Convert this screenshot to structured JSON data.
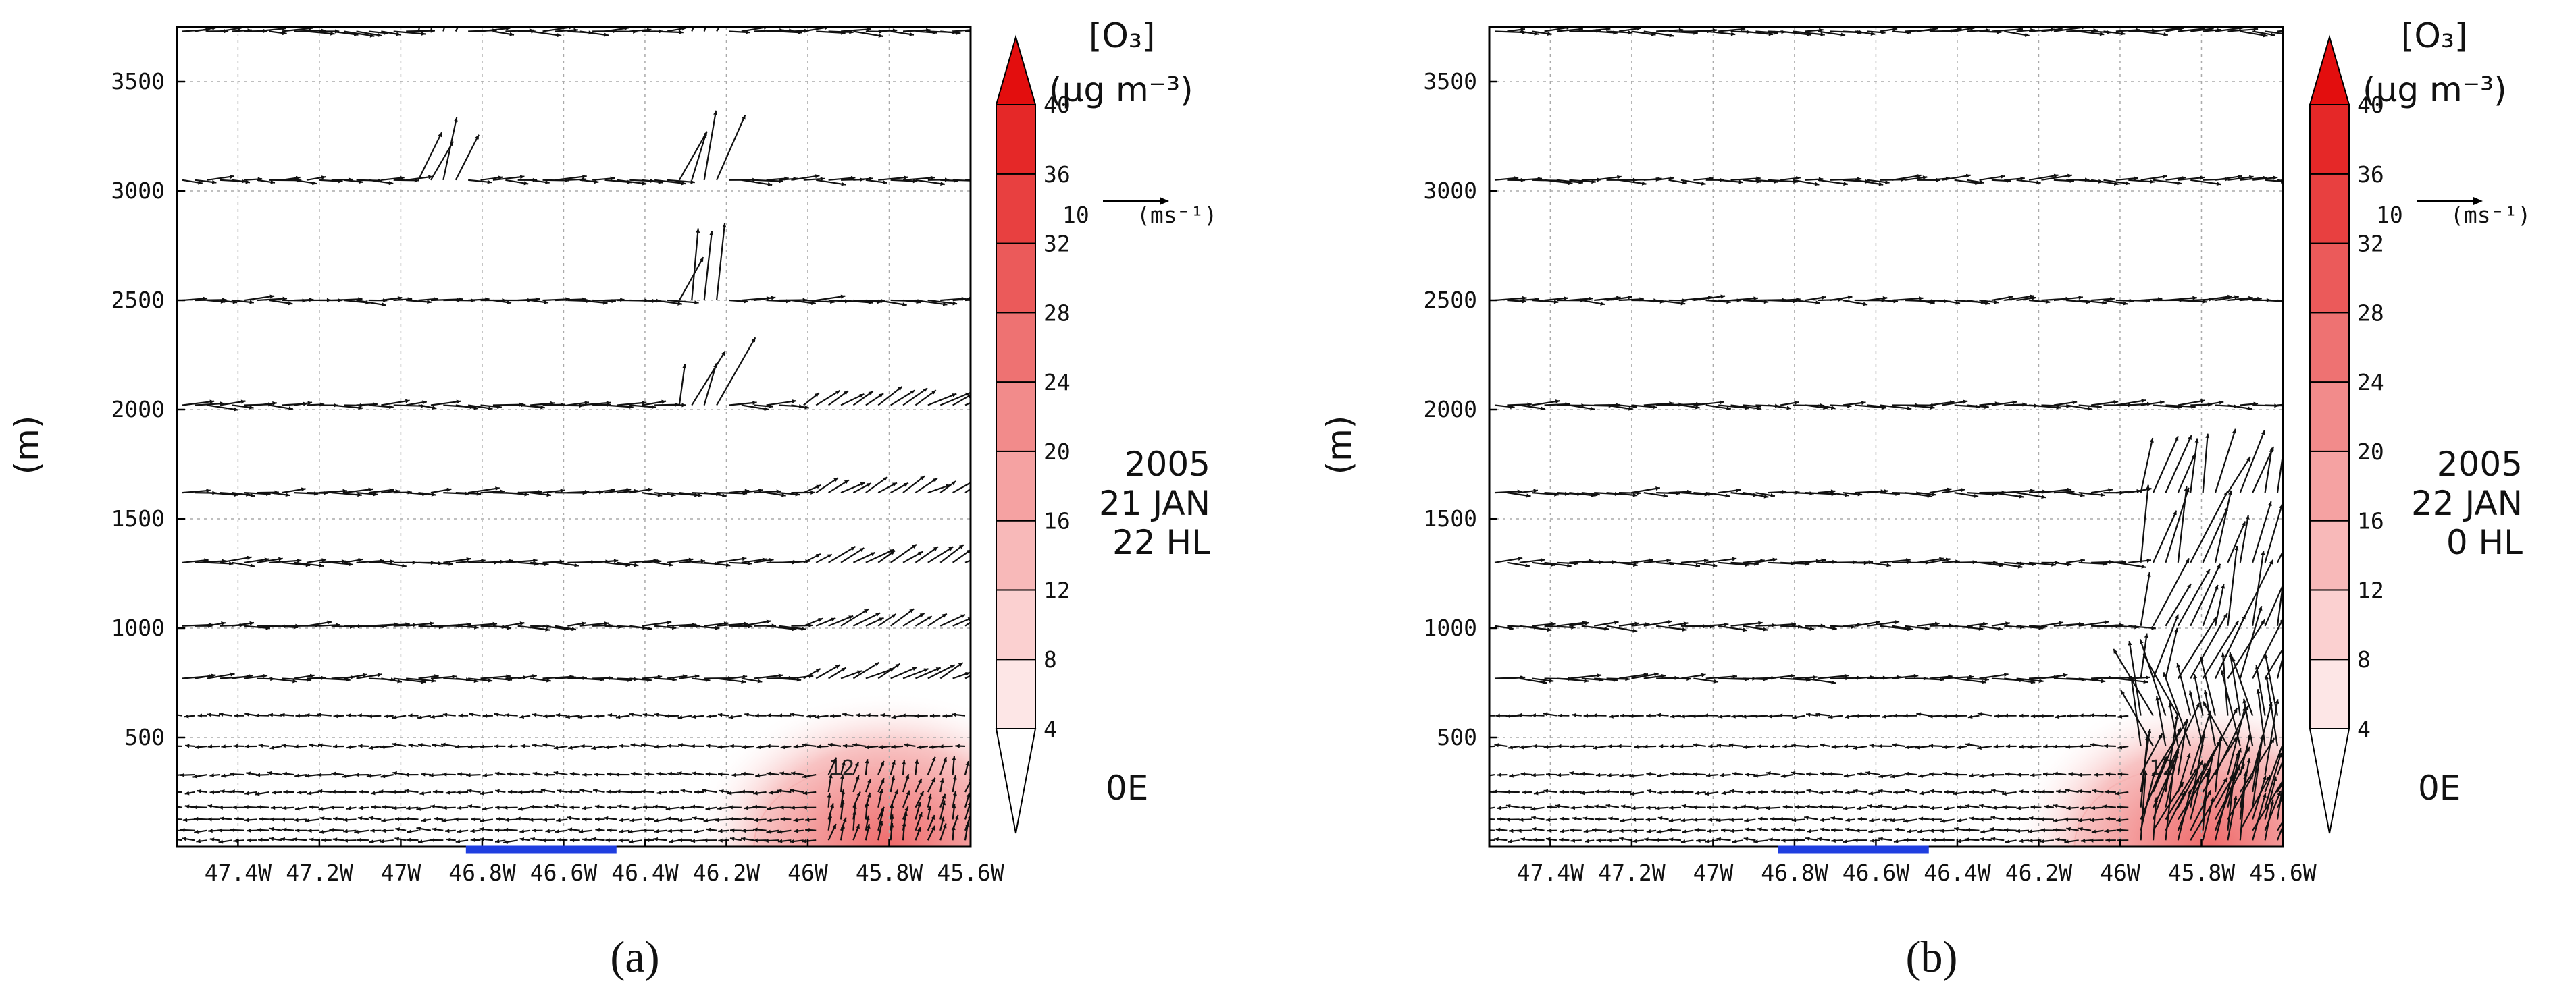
{
  "chart_data": [
    {
      "type": "vector-section",
      "panel_label": "a",
      "ylabel": "(m)",
      "yticks": [
        500,
        1000,
        1500,
        2000,
        2500,
        3000,
        3500
      ],
      "ylim": [
        0,
        3750
      ],
      "xticks": [
        "47.4W",
        "47.2W",
        "47W",
        "46.8W",
        "46.6W",
        "46.4W",
        "46.2W",
        "46W",
        "45.8W",
        "45.6W"
      ],
      "xlim": [
        -47.55,
        -45.6
      ],
      "date_lines": [
        "2005",
        "21 JAN",
        "22 HL"
      ],
      "projection_label": "0E",
      "contour_label": "12",
      "ozone_peak": 20,
      "ozone_center_lon": -45.8,
      "highlight_segment": [
        -46.84,
        -46.47
      ],
      "wind_pattern": "low-level easterly flow with strong upward motion near 46.9W and 46.3W",
      "vector_levels": [
        30,
        75,
        125,
        180,
        250,
        330,
        460,
        600,
        770,
        1010,
        1300,
        1620,
        2020,
        2500,
        3050,
        3730
      ]
    },
    {
      "type": "vector-section",
      "panel_label": "b",
      "ylabel": "(m)",
      "yticks": [
        500,
        1000,
        1500,
        2000,
        2500,
        3000,
        3500
      ],
      "ylim": [
        0,
        3750
      ],
      "xticks": [
        "47.4W",
        "47.2W",
        "47W",
        "46.8W",
        "46.6W",
        "46.4W",
        "46.2W",
        "46W",
        "45.8W",
        "45.6W"
      ],
      "xlim": [
        -47.55,
        -45.6
      ],
      "date_lines": [
        "2005",
        "22 JAN",
        "0 HL"
      ],
      "projection_label": "0E",
      "contour_label": "12",
      "ozone_peak": 22,
      "ozone_center_lon": -45.78,
      "highlight_segment": [
        -46.84,
        -46.47
      ],
      "wind_pattern": "low-level easterly flow with strong updraft near 45.9W",
      "vector_levels": [
        30,
        75,
        125,
        180,
        250,
        330,
        460,
        600,
        770,
        1010,
        1300,
        1620,
        2020,
        2500,
        3050,
        3730
      ]
    }
  ],
  "colorbar": {
    "title_line1": "[O₃]",
    "title_line2": "(μg m⁻³)",
    "levels": [
      4,
      8,
      12,
      16,
      20,
      24,
      28,
      32,
      36,
      40
    ],
    "level_labels": [
      "4",
      "8",
      "12",
      "16",
      "20",
      "24",
      "28",
      "32",
      "36",
      "40"
    ],
    "colors": [
      "#ffffff",
      "#fde6e6",
      "#fbd0d0",
      "#f8b9b9",
      "#f5a2a2",
      "#f28b8b",
      "#ee7272",
      "#eb5a5a",
      "#e84040",
      "#e52828",
      "#e30e0e"
    ]
  },
  "ref_vector": {
    "value": "10",
    "unit": "(ms⁻¹)"
  },
  "captions": [
    "(a)",
    "(b)"
  ]
}
